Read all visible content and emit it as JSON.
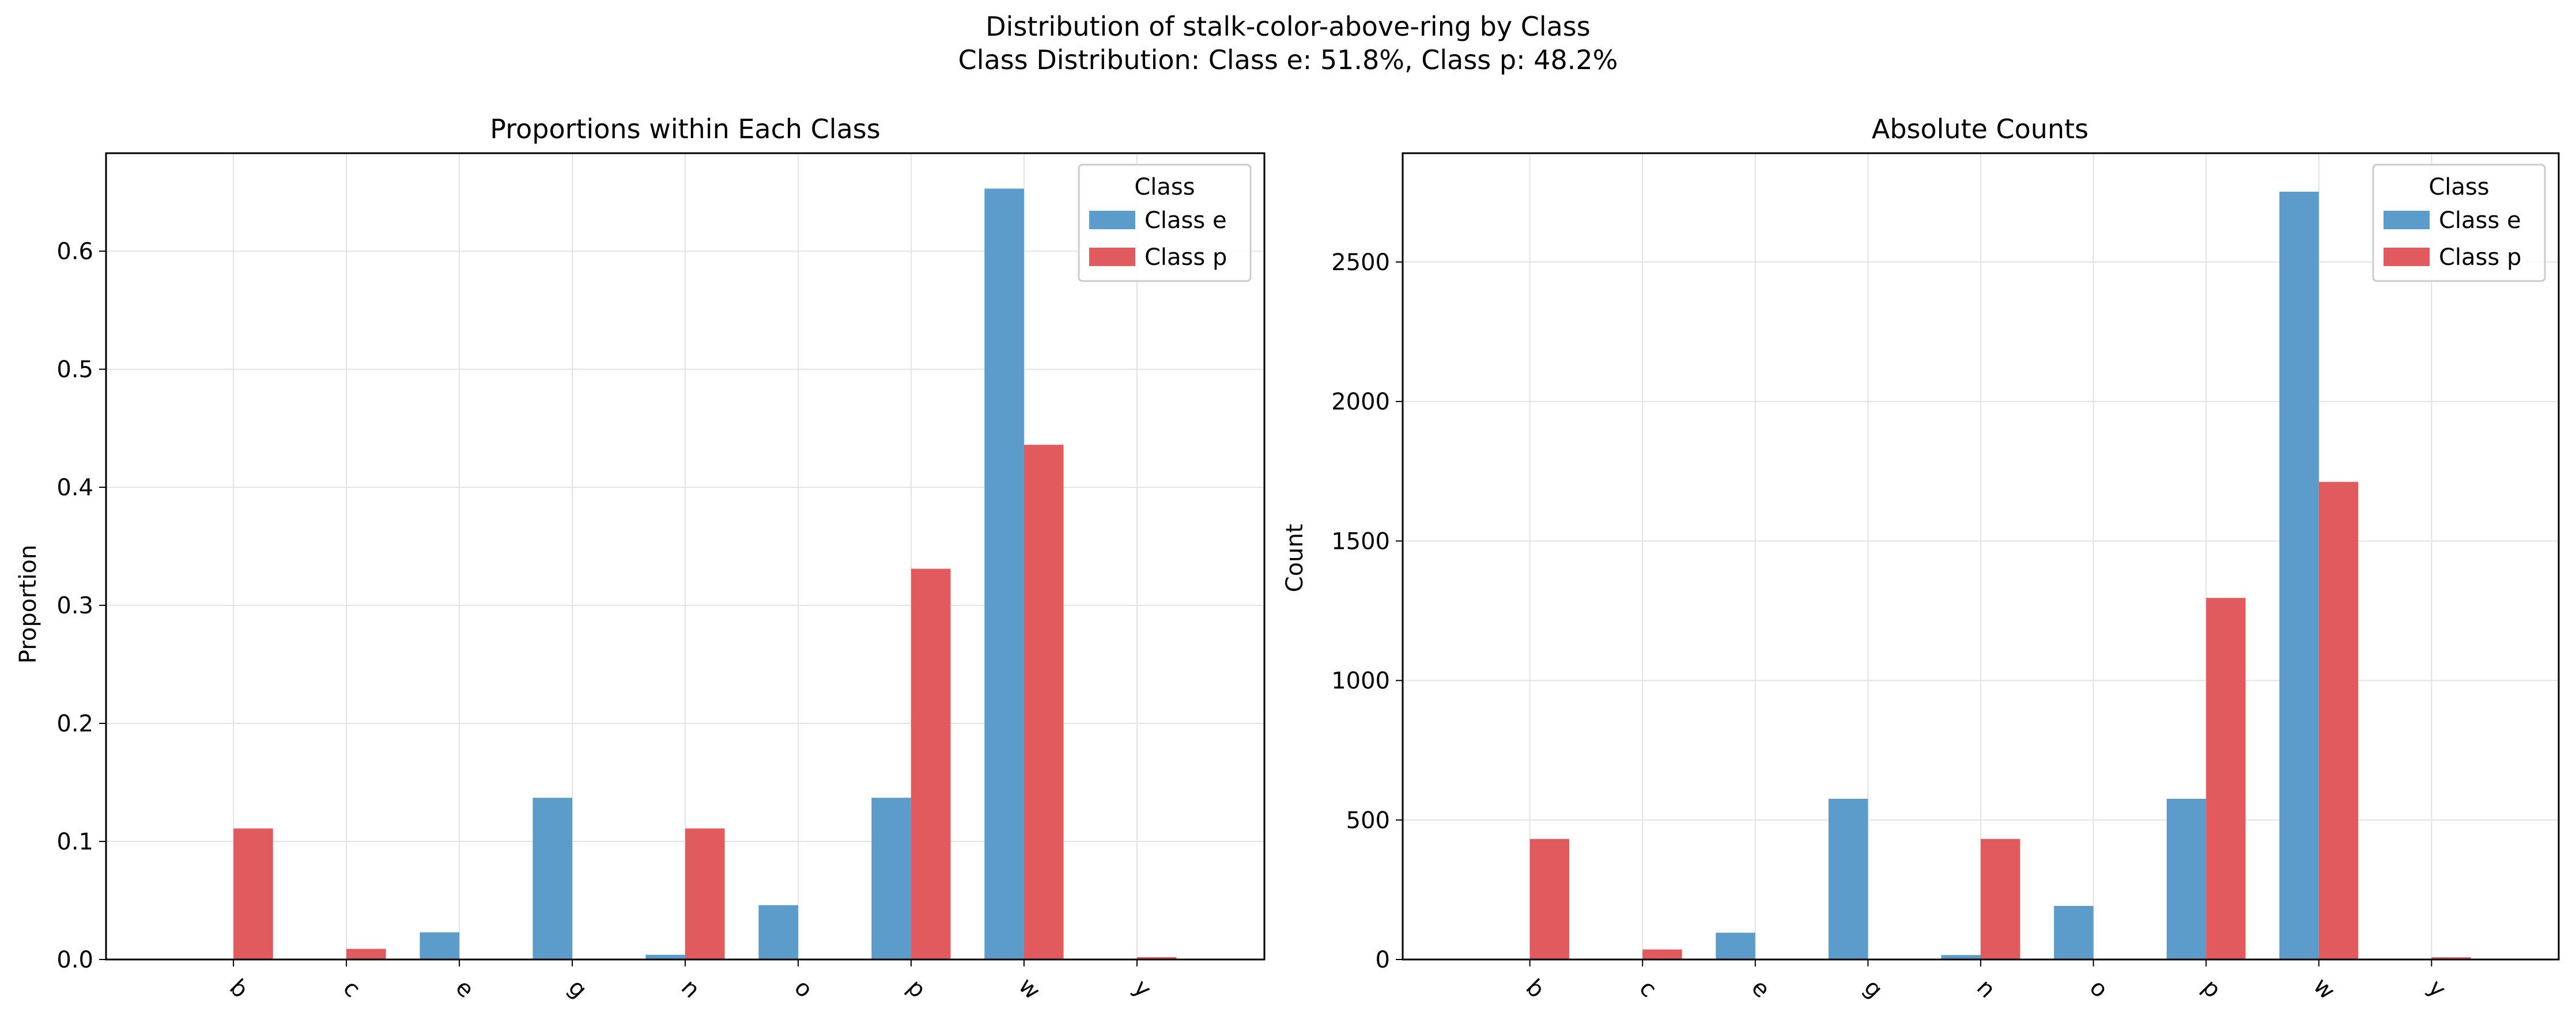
{
  "figure": {
    "title_line1": "Distribution of stalk-color-above-ring by Class",
    "title_line2": "Class Distribution: Class e: 51.8%, Class p: 48.2%"
  },
  "colors": {
    "class_e": "#5b9ccb",
    "class_p": "#e05a5e",
    "grid": "#e3e3e3"
  },
  "chart_data": [
    {
      "type": "bar",
      "title": "Proportions within Each Class",
      "xlabel": "",
      "ylabel": "Proportion",
      "categories": [
        "b",
        "c",
        "e",
        "g",
        "n",
        "o",
        "p",
        "w",
        "y"
      ],
      "series": [
        {
          "name": "Class e",
          "values": [
            0.0,
            0.0,
            0.023,
            0.137,
            0.004,
            0.046,
            0.137,
            0.653,
            0.0
          ]
        },
        {
          "name": "Class p",
          "values": [
            0.111,
            0.009,
            0.0,
            0.0,
            0.111,
            0.0,
            0.331,
            0.436,
            0.002
          ]
        }
      ],
      "ylim": [
        0,
        0.683
      ],
      "yticks": [
        0.0,
        0.1,
        0.2,
        0.3,
        0.4,
        0.5,
        0.6
      ],
      "ytick_labels": [
        "0.0",
        "0.1",
        "0.2",
        "0.3",
        "0.4",
        "0.5",
        "0.6"
      ],
      "grid": true,
      "legend": {
        "title": "Class",
        "placement": "top-right"
      }
    },
    {
      "type": "bar",
      "title": "Absolute Counts",
      "xlabel": "",
      "ylabel": "Count",
      "categories": [
        "b",
        "c",
        "e",
        "g",
        "n",
        "o",
        "p",
        "w",
        "y"
      ],
      "series": [
        {
          "name": "Class e",
          "values": [
            0,
            0,
            96,
            576,
            16,
            192,
            576,
            2752,
            0
          ]
        },
        {
          "name": "Class p",
          "values": [
            432,
            36,
            0,
            0,
            432,
            0,
            1296,
            1712,
            8
          ]
        }
      ],
      "ylim": [
        0,
        2890
      ],
      "yticks": [
        0,
        500,
        1000,
        1500,
        2000,
        2500
      ],
      "ytick_labels": [
        "0",
        "500",
        "1000",
        "1500",
        "2000",
        "2500"
      ],
      "grid": true,
      "legend": {
        "title": "Class",
        "placement": "top-right"
      }
    }
  ]
}
